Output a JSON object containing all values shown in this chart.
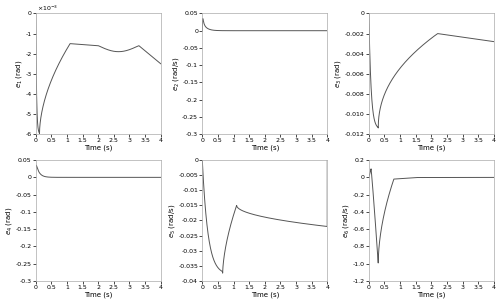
{
  "subplots": [
    {
      "ylabel": "$e_1$ (rad)",
      "ylim": [
        -0.006,
        0
      ],
      "yticks": [
        0,
        -0.001,
        -0.002,
        -0.003,
        -0.004,
        -0.005,
        -0.006
      ],
      "ytick_labels": [
        "0",
        "-1",
        "-2",
        "-3",
        "-4",
        "-5",
        "-6"
      ],
      "use_scale": true,
      "scale_label": "x10^{-3}",
      "curve": "e1"
    },
    {
      "ylabel": "$e_2$ (rad/s)",
      "ylim": [
        -0.3,
        0.05
      ],
      "yticks": [
        0.05,
        0,
        -0.05,
        -0.1,
        -0.15,
        -0.2,
        -0.25,
        -0.3
      ],
      "ytick_labels": [
        "0.05",
        "0",
        "-0.05",
        "-0.1",
        "-0.15",
        "-0.2",
        "-0.25",
        "-0.3"
      ],
      "use_scale": false,
      "curve": "e2"
    },
    {
      "ylabel": "$e_3$ (rad)",
      "ylim": [
        -0.012,
        0
      ],
      "yticks": [
        0,
        -0.002,
        -0.004,
        -0.006,
        -0.008,
        -0.01,
        -0.012
      ],
      "ytick_labels": [
        "0",
        "-0.002",
        "-0.004",
        "-0.006",
        "-0.008",
        "-0.010",
        "-0.012"
      ],
      "use_scale": false,
      "curve": "e3"
    },
    {
      "ylabel": "$e_4$ (rad)",
      "ylim": [
        -0.3,
        0.05
      ],
      "yticks": [
        0.05,
        0,
        -0.05,
        -0.1,
        -0.15,
        -0.2,
        -0.25,
        -0.3
      ],
      "ytick_labels": [
        "0.05",
        "0",
        "-0.05",
        "-0.1",
        "-0.15",
        "-0.2",
        "-0.25",
        "-0.3"
      ],
      "use_scale": false,
      "curve": "e4"
    },
    {
      "ylabel": "$e_5$ (rad/s)",
      "ylim": [
        -0.04,
        0
      ],
      "yticks": [
        0,
        -0.005,
        -0.01,
        -0.015,
        -0.02,
        -0.025,
        -0.03,
        -0.035,
        -0.04
      ],
      "ytick_labels": [
        "0",
        "-0.005",
        "-0.01",
        "-0.015",
        "-0.02",
        "-0.025",
        "-0.03",
        "-0.035",
        "-0.04"
      ],
      "use_scale": false,
      "curve": "e5"
    },
    {
      "ylabel": "$e_6$ (rad/s)",
      "ylim": [
        -1.2,
        0.2
      ],
      "yticks": [
        0.2,
        0,
        -0.2,
        -0.4,
        -0.6,
        -0.8,
        -1.0,
        -1.2
      ],
      "ytick_labels": [
        "0.2",
        "0",
        "-0.2",
        "-0.4",
        "-0.6",
        "-0.8",
        "-1.0",
        "-1.2"
      ],
      "use_scale": false,
      "curve": "e6"
    }
  ],
  "xlabel": "Time (s)",
  "xlim": [
    0,
    4
  ],
  "xticks": [
    0,
    0.5,
    1,
    1.5,
    2,
    2.5,
    3,
    3.5,
    4
  ],
  "xtick_labels": [
    "0",
    "0.5",
    "1",
    "1.5",
    "2",
    "2.5",
    "3",
    "3.5",
    "4"
  ],
  "line_color": "#555555",
  "line_width": 0.7,
  "bg_color": "#ffffff",
  "figsize": [
    5.0,
    3.02
  ],
  "dpi": 100
}
